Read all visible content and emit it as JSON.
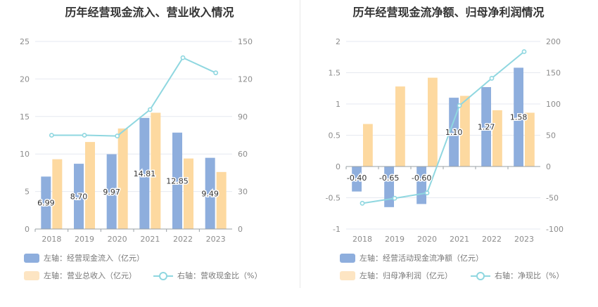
{
  "chart_data": [
    {
      "type": "bar",
      "title": "历年经营现金流入、营业收入情况",
      "categories": [
        "2018",
        "2019",
        "2020",
        "2021",
        "2022",
        "2023"
      ],
      "left_axis": {
        "ylim": [
          0,
          25
        ],
        "ticks": [
          "0",
          "5",
          "10",
          "15",
          "20",
          "25"
        ]
      },
      "right_axis": {
        "ylim": [
          0,
          150
        ],
        "ticks": [
          "0",
          "30",
          "60",
          "90",
          "120",
          "150"
        ]
      },
      "series": [
        {
          "name": "左轴：经营现金流入（亿元）",
          "type": "bar",
          "axis": "left",
          "color": "#8eaedd",
          "values": [
            6.99,
            8.7,
            9.97,
            14.81,
            12.85,
            9.49
          ],
          "labels": [
            "6.99",
            "8.70",
            "9.97",
            "14.81",
            "12.85",
            "9.49"
          ]
        },
        {
          "name": "左轴：营业总收入（亿元）",
          "type": "bar",
          "axis": "left",
          "color": "#fdd9a0",
          "values": [
            9.3,
            11.6,
            13.4,
            15.5,
            9.4,
            7.6
          ]
        },
        {
          "name": "右轴：营收现金比（%）",
          "type": "line",
          "axis": "right",
          "color": "#8fd7e0",
          "values": [
            75.0,
            75.0,
            74.4,
            95.5,
            137.0,
            124.9
          ]
        }
      ],
      "grid": true
    },
    {
      "type": "bar",
      "title": "历年经营现金流净额、归母净利润情况",
      "categories": [
        "2018",
        "2019",
        "2020",
        "2021",
        "2022",
        "2023"
      ],
      "left_axis": {
        "ylim": [
          -1,
          2
        ],
        "ticks": [
          "-1",
          "-0.5",
          "0",
          "0.5",
          "1",
          "1.5",
          "2"
        ]
      },
      "right_axis": {
        "ylim": [
          -100,
          200
        ],
        "ticks": [
          "-100",
          "-50",
          "0",
          "50",
          "100",
          "150",
          "200"
        ]
      },
      "series": [
        {
          "name": "左轴：经营活动现金流净额（亿元）",
          "type": "bar",
          "axis": "left",
          "color": "#8eaedd",
          "values": [
            -0.4,
            -0.65,
            -0.6,
            1.1,
            1.27,
            1.58
          ],
          "labels": [
            "-0.40",
            "-0.65",
            "-0.60",
            "1.10",
            "1.27",
            "1.58"
          ]
        },
        {
          "name": "左轴：归母净利润（亿元）",
          "type": "bar",
          "axis": "left",
          "color": "#fdd9a0",
          "values": [
            0.68,
            1.28,
            1.42,
            1.13,
            0.9,
            0.86
          ]
        },
        {
          "name": "右轴：净现比（%）",
          "type": "line",
          "axis": "right",
          "color": "#8fd7e0",
          "values": [
            -58.8,
            -50.8,
            -42.3,
            97.3,
            141.1,
            183.7
          ]
        }
      ],
      "grid": true
    }
  ]
}
